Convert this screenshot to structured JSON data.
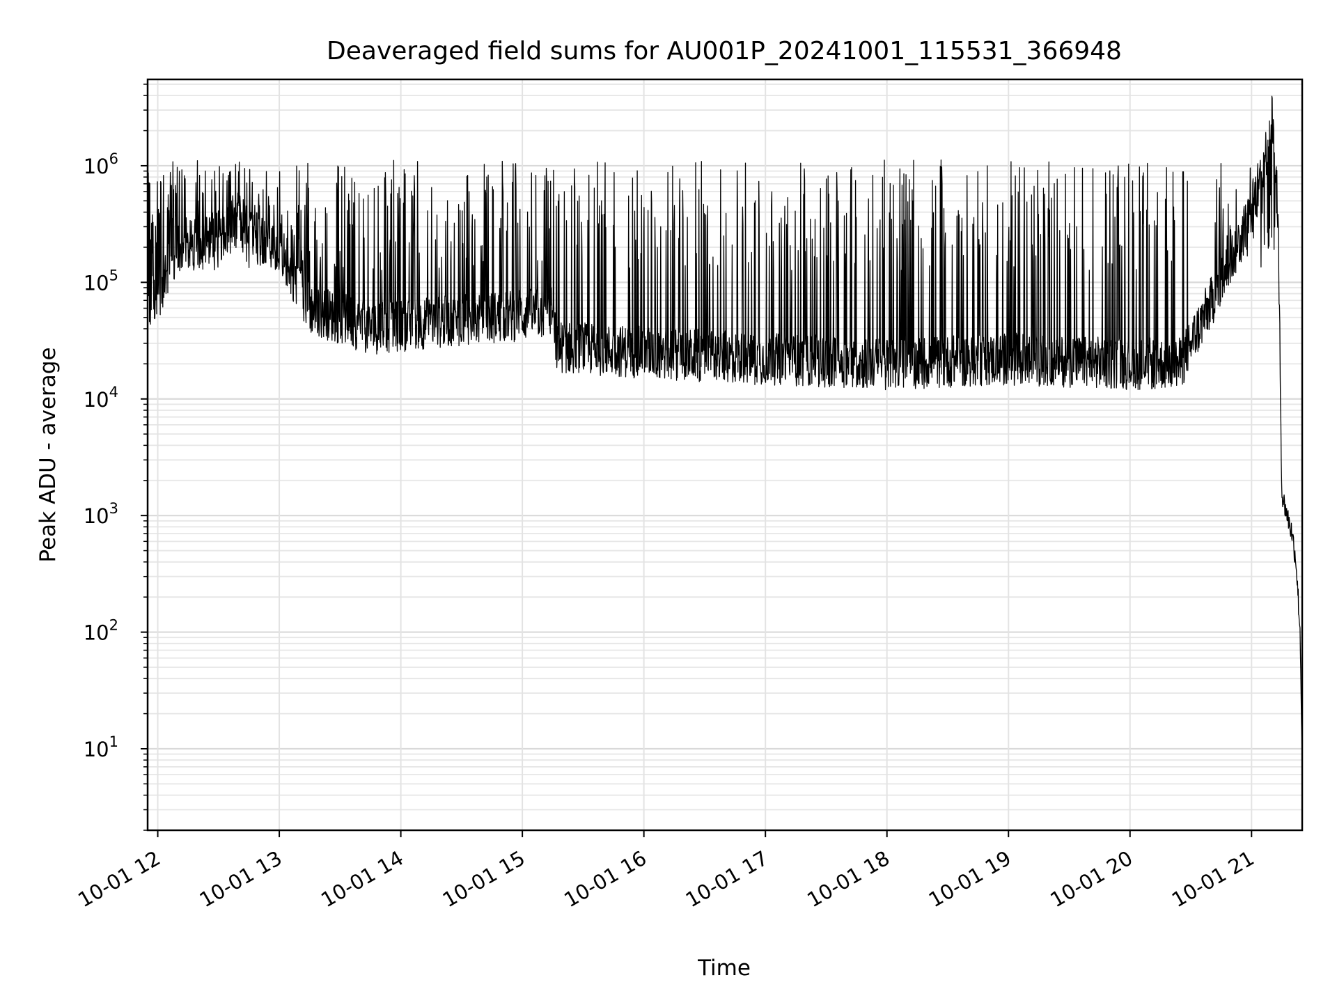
{
  "chart_data": {
    "type": "line",
    "title": "Deaveraged field sums for AU001P_20241001_115531_366948",
    "xlabel": "Time",
    "ylabel": "Peak ADU - average",
    "y_scale": "log",
    "ylim": [
      2,
      5500000
    ],
    "xlim": [
      "2024-10-01 11:55",
      "2024-10-01 21:25"
    ],
    "grid": true,
    "line_color": "#000000",
    "x_ticks": [
      "10-01 12",
      "10-01 13",
      "10-01 14",
      "10-01 15",
      "10-01 16",
      "10-01 17",
      "10-01 18",
      "10-01 19",
      "10-01 20",
      "10-01 21"
    ],
    "y_ticks": [
      {
        "base": "10",
        "exp": "1",
        "value": 10
      },
      {
        "base": "10",
        "exp": "2",
        "value": 100
      },
      {
        "base": "10",
        "exp": "3",
        "value": 1000
      },
      {
        "base": "10",
        "exp": "4",
        "value": 10000
      },
      {
        "base": "10",
        "exp": "5",
        "value": 100000
      },
      {
        "base": "10",
        "exp": "6",
        "value": 1000000
      }
    ],
    "series": [
      {
        "baseline": [
          {
            "x": "2024-10-01 11:55",
            "y": 60000
          },
          {
            "x": "2024-10-01 12:15",
            "y": 200000
          },
          {
            "x": "2024-10-01 12:40",
            "y": 300000
          },
          {
            "x": "2024-10-01 13:00",
            "y": 200000
          },
          {
            "x": "2024-10-01 13:15",
            "y": 60000
          },
          {
            "x": "2024-10-01 13:45",
            "y": 40000
          },
          {
            "x": "2024-10-01 14:15",
            "y": 45000
          },
          {
            "x": "2024-10-01 14:45",
            "y": 50000
          },
          {
            "x": "2024-10-01 15:15",
            "y": 55000
          },
          {
            "x": "2024-10-01 15:17",
            "y": 28000
          },
          {
            "x": "2024-10-01 16:00",
            "y": 25000
          },
          {
            "x": "2024-10-01 17:00",
            "y": 22000
          },
          {
            "x": "2024-10-01 18:00",
            "y": 20000
          },
          {
            "x": "2024-10-01 19:00",
            "y": 22000
          },
          {
            "x": "2024-10-01 20:00",
            "y": 20000
          },
          {
            "x": "2024-10-01 20:25",
            "y": 20000
          },
          {
            "x": "2024-10-01 20:45",
            "y": 100000
          },
          {
            "x": "2024-10-01 21:00",
            "y": 400000
          },
          {
            "x": "2024-10-01 21:08",
            "y": 1500000
          },
          {
            "x": "2024-10-01 21:10",
            "y": 2900000
          },
          {
            "x": "2024-10-01 21:13",
            "y": 400000
          },
          {
            "x": "2024-10-01 21:15",
            "y": 1500
          },
          {
            "x": "2024-10-01 21:20",
            "y": 700
          },
          {
            "x": "2024-10-01 21:22",
            "y": 400
          },
          {
            "x": "2024-10-01 21:24",
            "y": 100
          },
          {
            "x": "2024-10-01 21:25",
            "y": 8
          }
        ]
      }
    ]
  }
}
